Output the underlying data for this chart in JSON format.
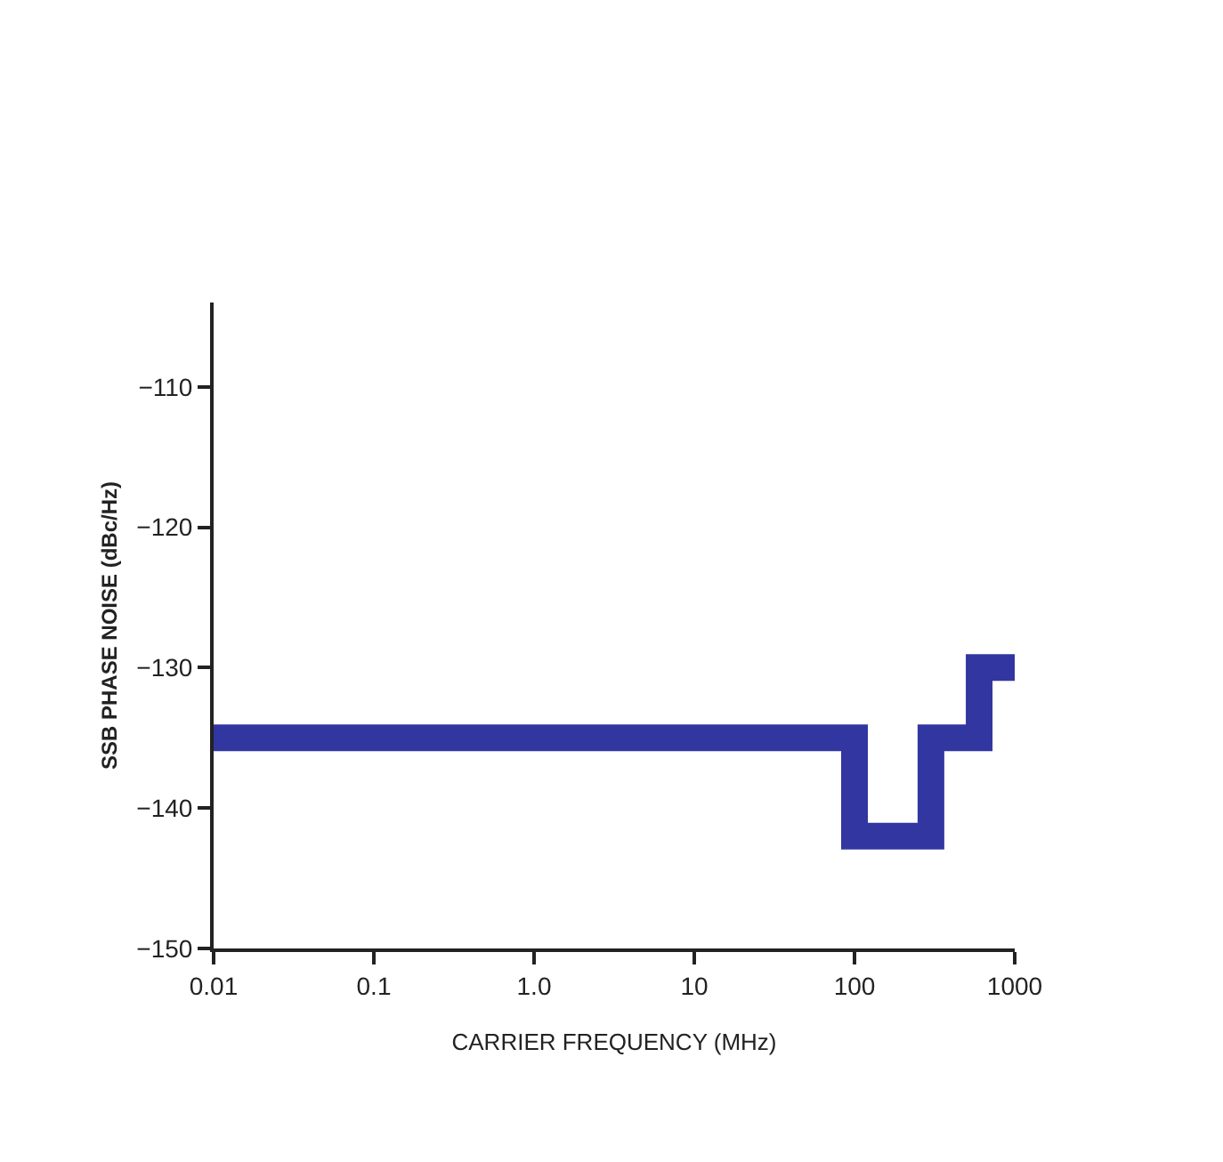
{
  "chart_data": {
    "type": "step",
    "xlabel": "CARRIER FREQUENCY (MHz)",
    "ylabel": "SSB PHASE NOISE (dBc/Hz)",
    "x": [
      0.01,
      100,
      300,
      600,
      1000
    ],
    "series": [
      {
        "color": "#3236a0",
        "values": [
          -135,
          -142,
          -135,
          -130,
          -130
        ]
      }
    ],
    "log": "x",
    "xlim": [
      0.01,
      1000
    ],
    "xticks": [
      0.01,
      0.1,
      {
        "value": 1,
        "label": "1.0"
      },
      10,
      100,
      1000
    ],
    "ylim": [
      -150,
      -104
    ],
    "yticks": [
      {
        "value": -150,
        "label": "−150"
      },
      {
        "value": -140,
        "label": "−140"
      },
      {
        "value": -130,
        "label": "−130"
      },
      {
        "value": -120,
        "label": "−120"
      },
      {
        "value": -110,
        "label": "−110"
      }
    ],
    "grid": false
  }
}
